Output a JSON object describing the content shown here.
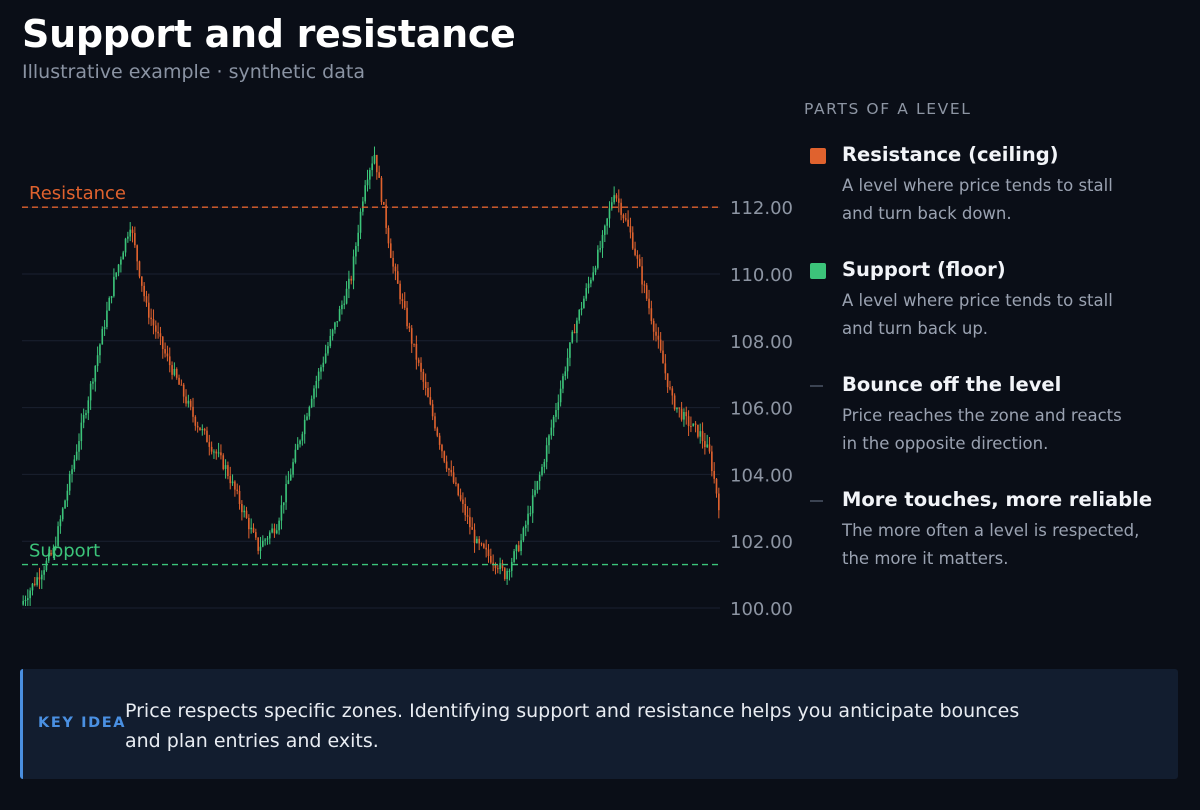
{
  "title": "Support and resistance",
  "subtitle": "Illustrative example · synthetic data",
  "chart_data": {
    "type": "candlestick",
    "y_ticks": [
      "100.00",
      "102.00",
      "104.00",
      "106.00",
      "108.00",
      "110.00",
      "112.00"
    ],
    "ylim": [
      99.5,
      114
    ],
    "grid": true,
    "levels": [
      {
        "name": "Resistance",
        "value": 112.0,
        "color": "#e0622e"
      },
      {
        "name": "Support",
        "value": 101.3,
        "color": "#3cc47a"
      }
    ],
    "path_points": [
      [
        0,
        100.1
      ],
      [
        14,
        101.7
      ],
      [
        28,
        106.0
      ],
      [
        40,
        109.8
      ],
      [
        47,
        111.5
      ],
      [
        54,
        109.0
      ],
      [
        62,
        107.6
      ],
      [
        75,
        105.6
      ],
      [
        88,
        104.2
      ],
      [
        102,
        101.8
      ],
      [
        110,
        102.5
      ],
      [
        125,
        106.4
      ],
      [
        142,
        109.9
      ],
      [
        148,
        112.8
      ],
      [
        152,
        113.6
      ],
      [
        160,
        110.2
      ],
      [
        168,
        108.0
      ],
      [
        182,
        104.5
      ],
      [
        196,
        101.9
      ],
      [
        205,
        101.3
      ],
      [
        208,
        101.0
      ],
      [
        215,
        102.0
      ],
      [
        224,
        104.2
      ],
      [
        238,
        108.4
      ],
      [
        250,
        111.0
      ],
      [
        255,
        112.5
      ],
      [
        262,
        111.2
      ],
      [
        270,
        109.0
      ],
      [
        280,
        106.2
      ],
      [
        286,
        105.6
      ],
      [
        292,
        105.2
      ],
      [
        296,
        104.6
      ],
      [
        300,
        103.1
      ]
    ],
    "candle_count": 300,
    "up_color": "#3cc47a",
    "down_color": "#e0622e"
  },
  "legend": {
    "heading": "PARTS OF A LEVEL",
    "items": [
      {
        "title": "Resistance (ceiling)",
        "desc": "A level where price tends to stall and turn back down.",
        "swatch": "#e0622e"
      },
      {
        "title": "Support (floor)",
        "desc": "A level where price tends to stall and turn back up.",
        "swatch": "#3cc47a"
      },
      {
        "title": "Bounce off the level",
        "desc": "Price reaches the zone and reacts in the opposite direction.",
        "swatch": "#3b4352"
      },
      {
        "title": "More touches, more reliable",
        "desc": "The more often a level is respected, the more it matters.",
        "swatch": "#3b4352"
      }
    ]
  },
  "key_idea": {
    "label": "KEY IDEA",
    "text": "Price respects specific zones. Identifying support and resistance helps you anticipate bounces and plan entries and exits."
  }
}
